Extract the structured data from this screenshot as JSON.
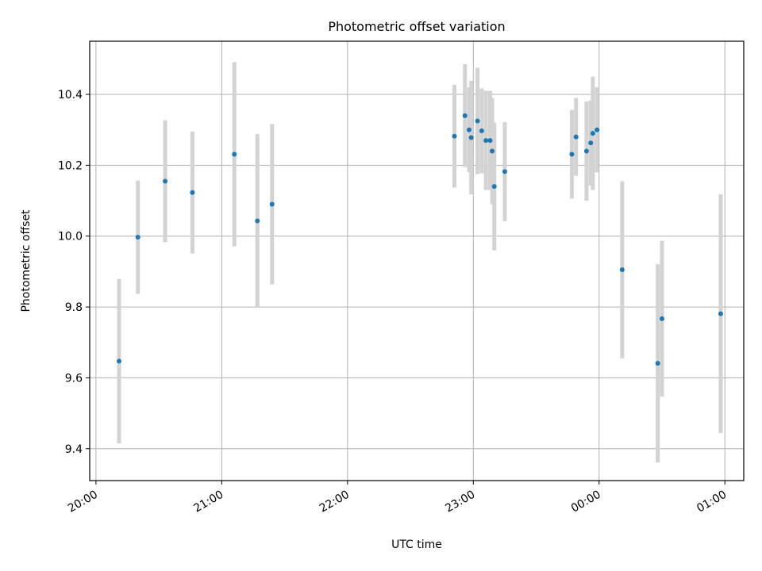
{
  "chart_data": {
    "type": "scatter",
    "title": "Photometric offset variation",
    "xlabel": "UTC time",
    "ylabel": "Photometric offset",
    "x_axis": {
      "kind": "time",
      "ticks": [
        "20:00",
        "21:00",
        "22:00",
        "23:00",
        "00:00",
        "01:00"
      ],
      "range": [
        "19:57",
        "01:09"
      ]
    },
    "ylim": [
      9.31,
      10.55
    ],
    "yticks": [
      9.4,
      9.6,
      9.8,
      10.0,
      10.2,
      10.4
    ],
    "grid": true,
    "colors": {
      "point": "#1f77b4",
      "errorbar": "#d3d3d3",
      "grid": "#b0b0b0",
      "axes": "#000000"
    },
    "points": [
      {
        "t": "20:11",
        "y": 9.647,
        "err": 0.232
      },
      {
        "t": "20:20",
        "y": 9.997,
        "err": 0.16
      },
      {
        "t": "20:33",
        "y": 10.155,
        "err": 0.172
      },
      {
        "t": "20:46",
        "y": 10.123,
        "err": 0.172
      },
      {
        "t": "21:06",
        "y": 10.231,
        "err": 0.26
      },
      {
        "t": "21:17",
        "y": 10.043,
        "err": 0.245
      },
      {
        "t": "21:24",
        "y": 10.09,
        "err": 0.226
      },
      {
        "t": "22:51",
        "y": 10.282,
        "err": 0.145
      },
      {
        "t": "22:56",
        "y": 10.34,
        "err": 0.145
      },
      {
        "t": "22:58",
        "y": 10.3,
        "err": 0.12
      },
      {
        "t": "22:59",
        "y": 10.278,
        "err": 0.16
      },
      {
        "t": "23:02",
        "y": 10.325,
        "err": 0.15
      },
      {
        "t": "23:04",
        "y": 10.297,
        "err": 0.12
      },
      {
        "t": "23:06",
        "y": 10.27,
        "err": 0.14
      },
      {
        "t": "23:08",
        "y": 10.27,
        "err": 0.14
      },
      {
        "t": "23:09",
        "y": 10.24,
        "err": 0.15
      },
      {
        "t": "23:10",
        "y": 10.14,
        "err": 0.18
      },
      {
        "t": "23:15",
        "y": 10.182,
        "err": 0.14
      },
      {
        "t": "23:47",
        "y": 10.231,
        "err": 0.125
      },
      {
        "t": "23:49",
        "y": 10.28,
        "err": 0.11
      },
      {
        "t": "23:54",
        "y": 10.24,
        "err": 0.14
      },
      {
        "t": "23:56",
        "y": 10.263,
        "err": 0.12
      },
      {
        "t": "23:57",
        "y": 10.29,
        "err": 0.16
      },
      {
        "t": "23:59",
        "y": 10.3,
        "err": 0.12
      },
      {
        "t": "00:11",
        "y": 9.905,
        "err": 0.25
      },
      {
        "t": "00:28",
        "y": 9.641,
        "err": 0.28
      },
      {
        "t": "00:30",
        "y": 9.767,
        "err": 0.22
      },
      {
        "t": "00:58",
        "y": 9.781,
        "err": 0.337
      }
    ]
  }
}
